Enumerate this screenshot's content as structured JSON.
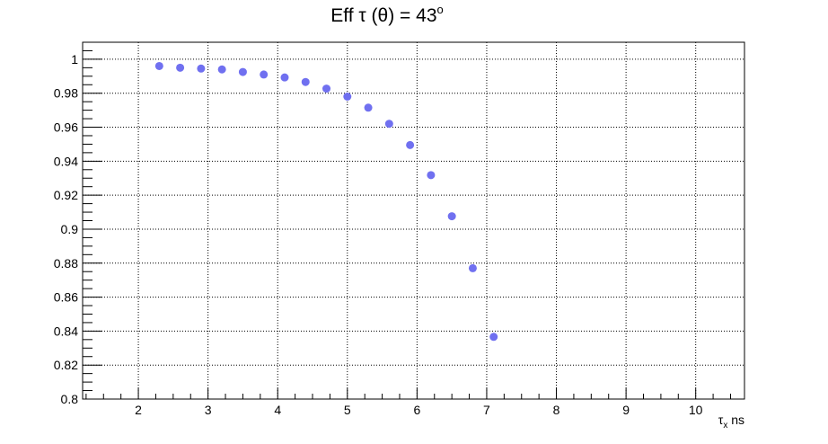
{
  "chart_data": {
    "type": "scatter",
    "title": {
      "prefix": "Eff ",
      "tau": "τ",
      "paren": " (θ) = 43",
      "degree": "o"
    },
    "xlabel": {
      "tau": "τ",
      "sub": "x",
      "unit": " ns"
    },
    "ylabel": "",
    "xlim": [
      1.2,
      10.7
    ],
    "ylim": [
      0.8,
      1.01
    ],
    "x_ticks": [
      2,
      3,
      4,
      5,
      6,
      7,
      8,
      9,
      10
    ],
    "y_ticks": [
      0.8,
      0.82,
      0.84,
      0.86,
      0.88,
      0.9,
      0.92,
      0.94,
      0.96,
      0.98,
      1.0
    ],
    "x_tick_labels": [
      "2",
      "3",
      "4",
      "5",
      "6",
      "7",
      "8",
      "9",
      "10"
    ],
    "y_tick_labels": [
      "0.8",
      "0.82",
      "0.84",
      "0.86",
      "0.88",
      "0.9",
      "0.92",
      "0.94",
      "0.96",
      "0.98",
      "1"
    ],
    "grid": true,
    "series": [
      {
        "color": "#7070f0",
        "points": [
          [
            2.3,
            0.996
          ],
          [
            2.6,
            0.995
          ],
          [
            2.9,
            0.9945
          ],
          [
            3.2,
            0.994
          ],
          [
            3.5,
            0.9925
          ],
          [
            3.8,
            0.991
          ],
          [
            4.1,
            0.9893
          ],
          [
            4.4,
            0.9866
          ],
          [
            4.7,
            0.9827
          ],
          [
            5.0,
            0.978
          ],
          [
            5.3,
            0.9715
          ],
          [
            5.6,
            0.962
          ],
          [
            5.9,
            0.9495
          ],
          [
            6.2,
            0.9318
          ],
          [
            6.5,
            0.9076
          ],
          [
            6.8,
            0.877
          ],
          [
            7.1,
            0.8366
          ]
        ]
      }
    ]
  }
}
